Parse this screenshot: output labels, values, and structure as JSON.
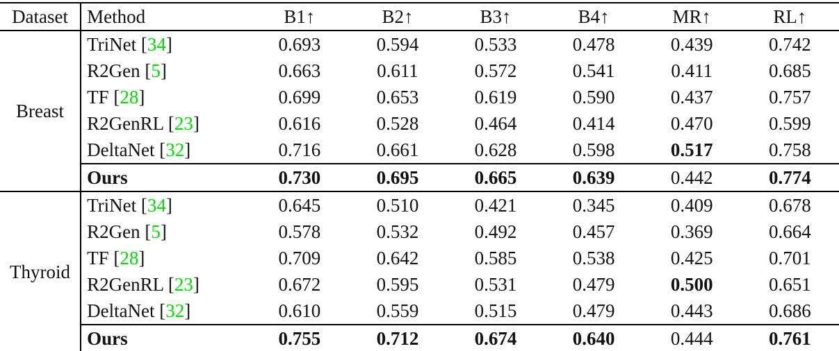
{
  "table": {
    "columns": [
      "Dataset",
      "Method",
      "B1↑",
      "B2↑",
      "B3↑",
      "B4↑",
      "MR↑",
      "RL↑"
    ],
    "citation_color": "#00dd00",
    "text_color": "#111111",
    "rule_color": "#000000",
    "sections": [
      {
        "dataset": "Breast",
        "rows": [
          {
            "method": "TriNet",
            "cite": "34",
            "ours": false,
            "values": [
              "0.693",
              "0.594",
              "0.533",
              "0.478",
              "0.439",
              "0.742"
            ],
            "bold": [
              false,
              false,
              false,
              false,
              false,
              false
            ]
          },
          {
            "method": "R2Gen",
            "cite": "5",
            "ours": false,
            "values": [
              "0.663",
              "0.611",
              "0.572",
              "0.541",
              "0.411",
              "0.685"
            ],
            "bold": [
              false,
              false,
              false,
              false,
              false,
              false
            ]
          },
          {
            "method": "TF",
            "cite": "28",
            "ours": false,
            "values": [
              "0.699",
              "0.653",
              "0.619",
              "0.590",
              "0.437",
              "0.757"
            ],
            "bold": [
              false,
              false,
              false,
              false,
              false,
              false
            ]
          },
          {
            "method": "R2GenRL",
            "cite": "23",
            "ours": false,
            "values": [
              "0.616",
              "0.528",
              "0.464",
              "0.414",
              "0.470",
              "0.599"
            ],
            "bold": [
              false,
              false,
              false,
              false,
              false,
              false
            ]
          },
          {
            "method": "DeltaNet",
            "cite": "32",
            "ours": false,
            "values": [
              "0.716",
              "0.661",
              "0.628",
              "0.598",
              "0.517",
              "0.758"
            ],
            "bold": [
              false,
              false,
              false,
              false,
              true,
              false
            ]
          },
          {
            "method": "Ours",
            "cite": null,
            "ours": true,
            "values": [
              "0.730",
              "0.695",
              "0.665",
              "0.639",
              "0.442",
              "0.774"
            ],
            "bold": [
              true,
              true,
              true,
              true,
              false,
              true
            ]
          }
        ]
      },
      {
        "dataset": "Thyroid",
        "rows": [
          {
            "method": "TriNet",
            "cite": "34",
            "ours": false,
            "values": [
              "0.645",
              "0.510",
              "0.421",
              "0.345",
              "0.409",
              "0.678"
            ],
            "bold": [
              false,
              false,
              false,
              false,
              false,
              false
            ]
          },
          {
            "method": "R2Gen",
            "cite": "5",
            "ours": false,
            "values": [
              "0.578",
              "0.532",
              "0.492",
              "0.457",
              "0.369",
              "0.664"
            ],
            "bold": [
              false,
              false,
              false,
              false,
              false,
              false
            ]
          },
          {
            "method": "TF",
            "cite": "28",
            "ours": false,
            "values": [
              "0.709",
              "0.642",
              "0.585",
              "0.538",
              "0.425",
              "0.701"
            ],
            "bold": [
              false,
              false,
              false,
              false,
              false,
              false
            ]
          },
          {
            "method": "R2GenRL",
            "cite": "23",
            "ours": false,
            "values": [
              "0.672",
              "0.595",
              "0.531",
              "0.479",
              "0.500",
              "0.651"
            ],
            "bold": [
              false,
              false,
              false,
              false,
              true,
              false
            ]
          },
          {
            "method": "DeltaNet",
            "cite": "32",
            "ours": false,
            "values": [
              "0.610",
              "0.559",
              "0.515",
              "0.479",
              "0.443",
              "0.686"
            ],
            "bold": [
              false,
              false,
              false,
              false,
              false,
              false
            ]
          },
          {
            "method": "Ours",
            "cite": null,
            "ours": true,
            "values": [
              "0.755",
              "0.712",
              "0.674",
              "0.640",
              "0.444",
              "0.761"
            ],
            "bold": [
              true,
              true,
              true,
              true,
              false,
              true
            ]
          }
        ]
      }
    ]
  }
}
